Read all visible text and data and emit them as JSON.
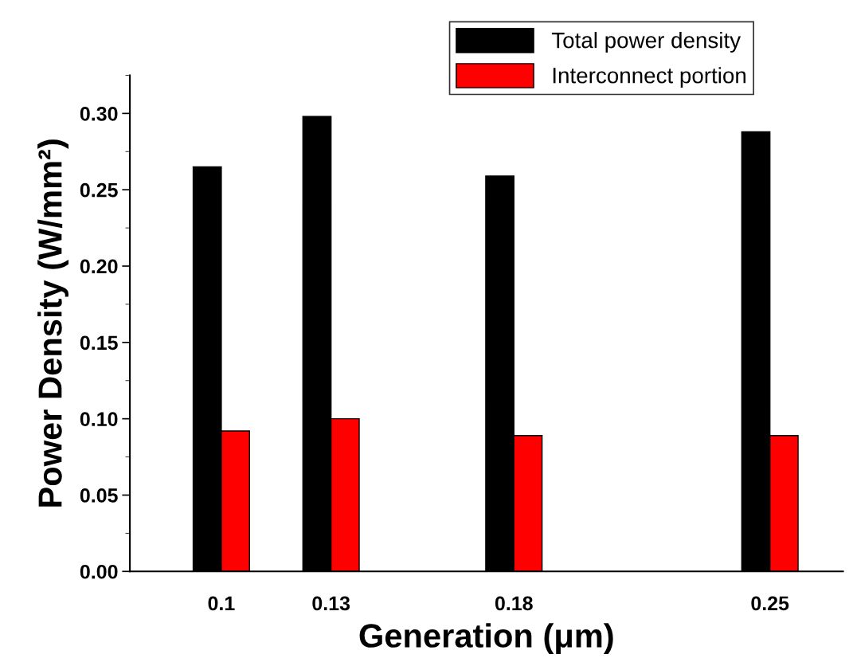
{
  "chart_data": {
    "type": "bar",
    "xlabel": "Generation (μm)",
    "ylabel": "Power Density (W/mm²)",
    "x": [
      0.1,
      0.13,
      0.18,
      0.25
    ],
    "series": [
      {
        "name": "Total power density",
        "color": "#000000",
        "values": [
          0.265,
          0.298,
          0.259,
          0.288
        ]
      },
      {
        "name": "Interconnect portion",
        "color": "#ff0000",
        "values": [
          0.092,
          0.1,
          0.089,
          0.089
        ]
      }
    ],
    "xlim": [
      0.075,
      0.27
    ],
    "xticks": [
      0.1,
      0.13,
      0.18,
      0.25
    ],
    "ylim": [
      0,
      0.325
    ],
    "yticks": [
      {
        "value": 0,
        "label": "0.00"
      },
      {
        "value": 0.05,
        "label": "0.05"
      },
      {
        "value": 0.1,
        "label": "0.10"
      },
      {
        "value": 0.15,
        "label": "0.15"
      },
      {
        "value": 0.2,
        "label": "0.20"
      },
      {
        "value": 0.25,
        "label": "0.25"
      },
      {
        "value": 0.3,
        "label": "0.30"
      }
    ],
    "grid": false,
    "legend": "top right"
  }
}
